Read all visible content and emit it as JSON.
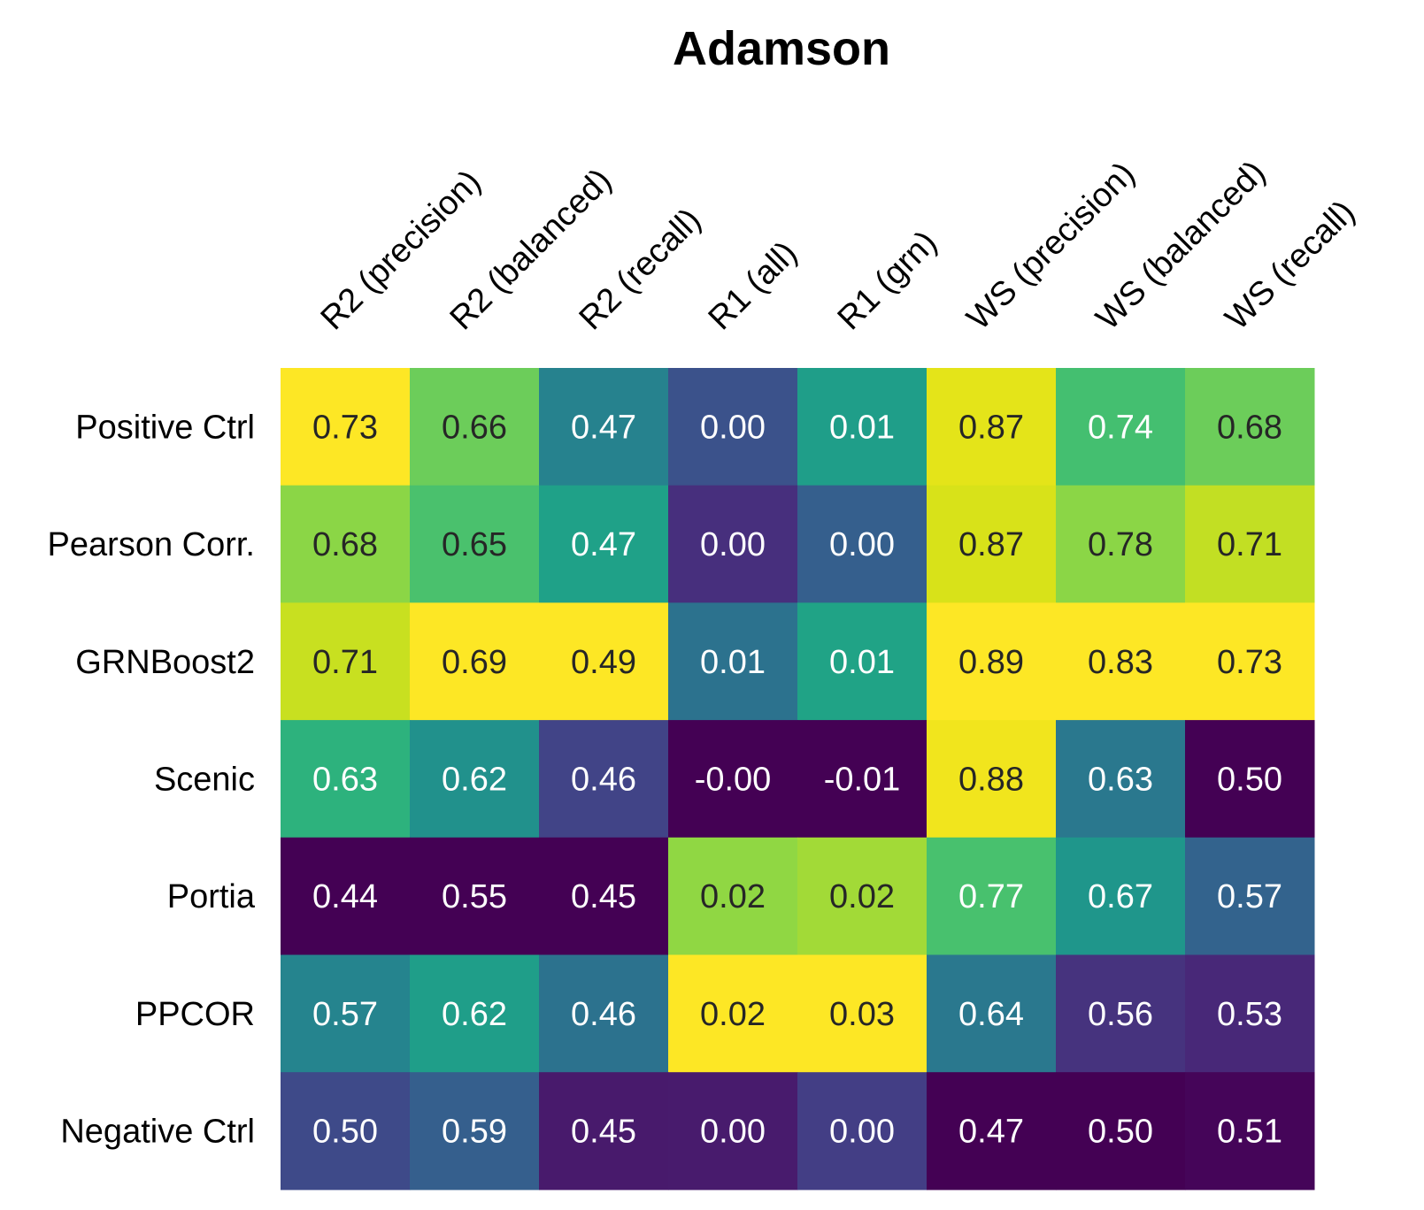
{
  "chart_data": {
    "type": "heatmap",
    "title": "Adamson",
    "columns": [
      "R2 (precision)",
      "R2 (balanced)",
      "R2 (recall)",
      "R1 (all)",
      "R1 (grn)",
      "WS (precision)",
      "WS (balanced)",
      "WS (recall)"
    ],
    "rows": [
      "Positive Ctrl",
      "Pearson Corr.",
      "GRNBoost2",
      "Scenic",
      "Portia",
      "PPCOR",
      "Negative Ctrl"
    ],
    "values": [
      [
        "0.73",
        "0.66",
        "0.47",
        "0.00",
        "0.01",
        "0.87",
        "0.74",
        "0.68"
      ],
      [
        "0.68",
        "0.65",
        "0.47",
        "0.00",
        "0.00",
        "0.87",
        "0.78",
        "0.71"
      ],
      [
        "0.71",
        "0.69",
        "0.49",
        "0.01",
        "0.01",
        "0.89",
        "0.83",
        "0.73"
      ],
      [
        "0.63",
        "0.62",
        "0.46",
        "-0.00",
        "-0.01",
        "0.88",
        "0.63",
        "0.50"
      ],
      [
        "0.44",
        "0.55",
        "0.45",
        "0.02",
        "0.02",
        "0.77",
        "0.67",
        "0.57"
      ],
      [
        "0.57",
        "0.62",
        "0.46",
        "0.02",
        "0.03",
        "0.64",
        "0.56",
        "0.53"
      ],
      [
        "0.50",
        "0.59",
        "0.45",
        "0.00",
        "0.00",
        "0.47",
        "0.50",
        "0.51"
      ]
    ],
    "colormap": "viridis",
    "color_scaling": "per-column",
    "cell_colors": [
      [
        "#fde725",
        "#6ccd5a",
        "#26828e",
        "#3b528b",
        "#1f9e89",
        "#e4e419",
        "#44bf70",
        "#6ccd5a"
      ],
      [
        "#8bd646",
        "#4ac16d",
        "#1fa188",
        "#472f7d",
        "#355f8d",
        "#d8e219",
        "#8bd646",
        "#c2df23"
      ],
      [
        "#c8e020",
        "#fde725",
        "#fde725",
        "#2c728e",
        "#20a386",
        "#fde725",
        "#fde725",
        "#fde725"
      ],
      [
        "#2db27d",
        "#21918c",
        "#414487",
        "#440154",
        "#440154",
        "#f1e51d",
        "#2a788e",
        "#440154"
      ],
      [
        "#440154",
        "#440154",
        "#440154",
        "#90d743",
        "#a2da37",
        "#48c16e",
        "#1f968b",
        "#33638d"
      ],
      [
        "#25848e",
        "#1f9e89",
        "#2c728e",
        "#fde725",
        "#fde725",
        "#2a788e",
        "#46337e",
        "#482878"
      ],
      [
        "#3e4a89",
        "#355f8d",
        "#481a6c",
        "#481b6d",
        "#433e85",
        "#440154",
        "#440154",
        "#450559"
      ]
    ],
    "text_colors": [
      [
        "#262626",
        "#262626",
        "#ffffff",
        "#ffffff",
        "#ffffff",
        "#262626",
        "#ffffff",
        "#262626"
      ],
      [
        "#262626",
        "#262626",
        "#ffffff",
        "#ffffff",
        "#ffffff",
        "#262626",
        "#262626",
        "#262626"
      ],
      [
        "#262626",
        "#262626",
        "#262626",
        "#ffffff",
        "#ffffff",
        "#262626",
        "#262626",
        "#262626"
      ],
      [
        "#ffffff",
        "#ffffff",
        "#ffffff",
        "#ffffff",
        "#ffffff",
        "#262626",
        "#ffffff",
        "#ffffff"
      ],
      [
        "#ffffff",
        "#ffffff",
        "#ffffff",
        "#262626",
        "#262626",
        "#ffffff",
        "#ffffff",
        "#ffffff"
      ],
      [
        "#ffffff",
        "#ffffff",
        "#ffffff",
        "#262626",
        "#262626",
        "#ffffff",
        "#ffffff",
        "#ffffff"
      ],
      [
        "#ffffff",
        "#ffffff",
        "#ffffff",
        "#ffffff",
        "#ffffff",
        "#ffffff",
        "#ffffff",
        "#ffffff"
      ]
    ]
  }
}
